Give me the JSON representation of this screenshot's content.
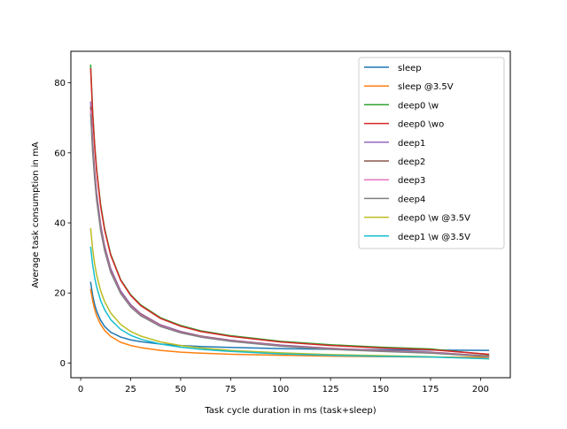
{
  "chart_data": {
    "type": "line",
    "title": "",
    "xlabel": "Task cycle duration in ms (task+sleep)",
    "ylabel": "Average task consumption in mA",
    "xlim": [
      -4.9,
      214.9
    ],
    "ylim": [
      -4.2,
      89.0
    ],
    "xticks": [
      0,
      25,
      50,
      75,
      100,
      125,
      150,
      175,
      200
    ],
    "yticks": [
      0,
      20,
      40,
      60,
      80
    ],
    "grid": false,
    "legend_position": "top-right",
    "x": [
      5,
      6,
      7,
      8,
      10,
      12,
      15,
      20,
      25,
      30,
      40,
      50,
      60,
      75,
      100,
      125,
      150,
      175,
      204
    ],
    "series": [
      {
        "name": "sleep",
        "color": "#1f77b4",
        "values": [
          23.0,
          19.3,
          16.7,
          14.8,
          12.2,
          10.4,
          8.8,
          7.4,
          6.6,
          6.1,
          5.4,
          5.0,
          4.7,
          4.45,
          4.1,
          3.9,
          3.8,
          3.7,
          3.6
        ]
      },
      {
        "name": "sleep @3.5V",
        "color": "#ff7f0e",
        "values": [
          21.0,
          17.7,
          15.3,
          13.5,
          11.0,
          9.3,
          7.6,
          5.9,
          5.0,
          4.4,
          3.6,
          3.1,
          2.8,
          2.5,
          2.2,
          1.95,
          1.8,
          1.7,
          1.6
        ]
      },
      {
        "name": "deep0 \\w",
        "color": "#2ca02c",
        "values": [
          85.0,
          72.0,
          62.5,
          55.3,
          45.2,
          38.3,
          31.1,
          23.8,
          19.5,
          16.6,
          12.9,
          10.7,
          9.2,
          7.8,
          6.2,
          5.2,
          4.5,
          4.0,
          2.4
        ]
      },
      {
        "name": "deep0 \\wo",
        "color": "#d62728",
        "values": [
          84.0,
          71.0,
          61.8,
          54.8,
          44.7,
          37.9,
          30.8,
          23.6,
          19.3,
          16.4,
          12.7,
          10.5,
          9.0,
          7.6,
          6.0,
          5.0,
          4.3,
          3.8,
          2.5
        ]
      },
      {
        "name": "deep1",
        "color": "#9467bd",
        "values": [
          74.5,
          63.0,
          55.0,
          48.5,
          39.5,
          33.4,
          27.0,
          20.6,
          16.7,
          14.1,
          10.9,
          9.0,
          7.7,
          6.5,
          5.1,
          4.2,
          3.6,
          3.1,
          2.0
        ]
      },
      {
        "name": "deep2",
        "color": "#8c564b",
        "values": [
          73.0,
          62.0,
          54.0,
          47.6,
          38.8,
          32.8,
          26.5,
          20.2,
          16.4,
          13.9,
          10.7,
          8.8,
          7.6,
          6.4,
          5.0,
          4.1,
          3.5,
          3.0,
          2.0
        ]
      },
      {
        "name": "deep3",
        "color": "#e377c2",
        "values": [
          72.0,
          61.0,
          53.2,
          47.0,
          38.3,
          32.4,
          26.2,
          20.0,
          16.2,
          13.7,
          10.6,
          8.7,
          7.5,
          6.3,
          4.9,
          4.0,
          3.4,
          2.9,
          1.9
        ]
      },
      {
        "name": "deep4",
        "color": "#7f7f7f",
        "values": [
          71.0,
          60.2,
          52.5,
          46.4,
          37.8,
          32.0,
          25.9,
          19.8,
          16.0,
          13.5,
          10.4,
          8.6,
          7.4,
          6.2,
          4.8,
          3.9,
          3.3,
          2.8,
          1.8
        ]
      },
      {
        "name": "deep0 \\w @3.5V",
        "color": "#bcbd22",
        "values": [
          38.3,
          32.5,
          28.3,
          25.1,
          20.6,
          17.5,
          14.3,
          11.0,
          9.0,
          7.7,
          6.0,
          5.0,
          4.3,
          3.6,
          2.9,
          2.4,
          2.1,
          1.8,
          1.2
        ]
      },
      {
        "name": "deep1 \\w @3.5V",
        "color": "#17becf",
        "values": [
          33.0,
          28.0,
          24.4,
          21.7,
          17.8,
          15.2,
          12.4,
          9.6,
          7.9,
          6.8,
          5.4,
          4.5,
          3.9,
          3.3,
          2.6,
          2.2,
          1.9,
          1.7,
          1.2
        ]
      }
    ]
  }
}
